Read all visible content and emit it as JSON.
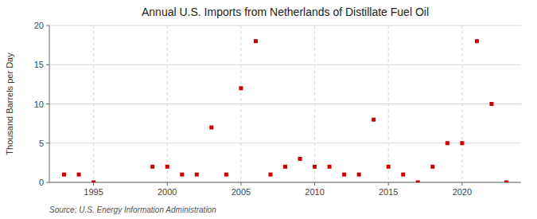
{
  "chart_data": {
    "type": "scatter",
    "title": "Annual U.S. Imports from Netherlands of Distillate Fuel Oil",
    "ylabel": "Thousand Barrels per Day",
    "annotation": "Source: U.S. Energy Information Administration",
    "x": [
      1993,
      1994,
      1995,
      1999,
      2000,
      2001,
      2002,
      2003,
      2004,
      2005,
      2006,
      2007,
      2008,
      2009,
      2010,
      2011,
      2012,
      2013,
      2014,
      2015,
      2016,
      2017,
      2018,
      2019,
      2020,
      2021,
      2022,
      2023
    ],
    "values": [
      1,
      1,
      0,
      2,
      2,
      1,
      1,
      7,
      1,
      12,
      18,
      1,
      2,
      3,
      2,
      2,
      1,
      1,
      8,
      2,
      1,
      0,
      2,
      5,
      5,
      18,
      10,
      0
    ],
    "color": "#cc0000",
    "marker": "square",
    "xlim": [
      1992,
      2024
    ],
    "ylim": [
      0,
      20
    ],
    "xticks": [
      1995,
      2000,
      2005,
      2010,
      2015,
      2020
    ],
    "yticks": [
      0,
      5,
      10,
      15,
      20
    ],
    "grid": true
  }
}
